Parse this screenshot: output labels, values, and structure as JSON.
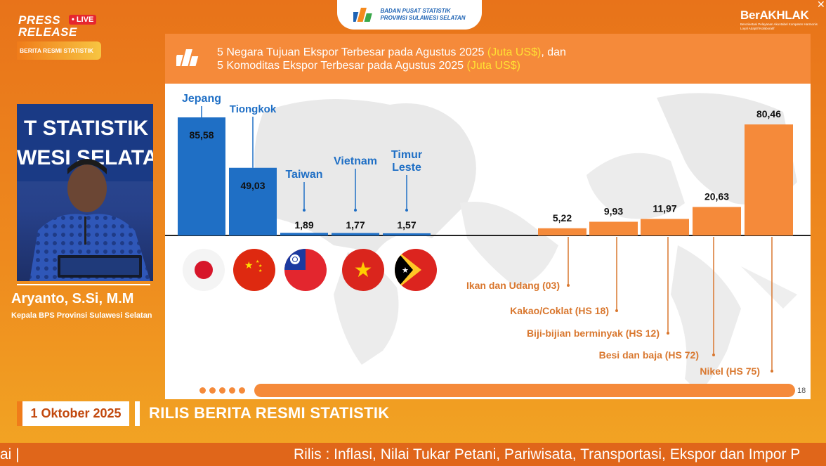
{
  "top_badge": {
    "line1": "BADAN PUSAT STATISTIK",
    "line2": "PROVINSI SULAWESI SELATAN"
  },
  "press_release": {
    "line1": "PRESS",
    "line2": "RELEASE",
    "live": "• LIVE",
    "tag": "BERITA RESMI STATISTIK"
  },
  "berakhlak": {
    "title": "BerAKHLAK",
    "subtitle": "Berorientasi Pelayanan Akuntabel Kompeten Harmonis Loyal Adaptif Kolaboratif"
  },
  "video": {
    "wall_line1": "T STATISTIK",
    "wall_line2": "WESI SELATA"
  },
  "speaker": {
    "name": "Aryanto, S.Si, M.M",
    "title": "Kepala BPS Provinsi Sulawesi Selatan"
  },
  "slide": {
    "title_line1_pre": "5 Negara Tujuan Ekspor Terbesar pada Agustus 2025 ",
    "title_line1_unit": "(Juta US$)",
    "title_line1_post": ", dan",
    "title_line2_pre": "5 Komoditas Ekspor Terbesar pada Agustus 2025 ",
    "title_line2_unit": "(Juta US$)",
    "page_number": "18",
    "colors": {
      "countries": "#1f6fc5",
      "commodities": "#f58a3a",
      "header": "#f58a3a"
    }
  },
  "chart_data": [
    {
      "type": "bar",
      "categories": [
        "Jepang",
        "Tiongkok",
        "Taiwan",
        "Vietnam",
        "Timur Leste"
      ],
      "values": [
        85.58,
        49.03,
        1.89,
        1.77,
        1.57
      ],
      "value_labels": [
        "85,58",
        "49,03",
        "1,89",
        "1,77",
        "1,57"
      ],
      "flags": [
        "japan-flag",
        "china-flag",
        "taiwan-flag",
        "vietnam-flag",
        "timor-leste-flag"
      ],
      "ylim": [
        0,
        90
      ]
    },
    {
      "type": "bar",
      "categories": [
        "Ikan dan Udang (03)",
        "Kakao/Coklat (HS 18)",
        "Biji-bijian berminyak (HS 12)",
        "Besi dan baja (HS 72)",
        "Nikel (HS 75)"
      ],
      "values": [
        5.22,
        9.93,
        11.97,
        20.63,
        80.46
      ],
      "value_labels": [
        "5,22",
        "9,93",
        "11,97",
        "20,63",
        "80,46"
      ],
      "ylim": [
        0,
        90
      ]
    }
  ],
  "footer": {
    "date": "1 Oktober 2025",
    "title": "RILIS BERITA RESMI STATISTIK",
    "ticker_left": "ai |",
    "ticker_right": "Rilis : Inflasi, Nilai Tukar Petani, Pariwisata, Transportasi, Ekspor dan Impor P"
  }
}
